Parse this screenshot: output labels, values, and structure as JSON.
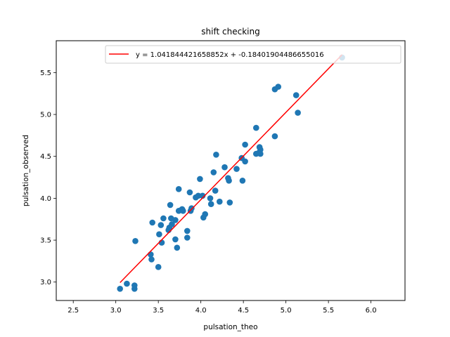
{
  "chart_data": {
    "type": "scatter",
    "title": "shift checking",
    "xlabel": "pulsation_theo",
    "ylabel": "pulsation_observed",
    "xlim": [
      2.3,
      6.4
    ],
    "ylim": [
      2.78,
      5.88
    ],
    "xticks": [
      "2.5",
      "3.0",
      "3.5",
      "4.0",
      "4.5",
      "5.0",
      "5.5",
      "6.0"
    ],
    "yticks": [
      "3.0",
      "3.5",
      "4.0",
      "4.5",
      "5.0",
      "5.5"
    ],
    "grid": false,
    "legend_position": "top-right",
    "points_color": "#1f77b4",
    "line_color": "#ff0000",
    "points": [
      [
        3.05,
        2.92
      ],
      [
        3.13,
        2.98
      ],
      [
        3.22,
        2.92
      ],
      [
        3.22,
        2.96
      ],
      [
        3.23,
        3.49
      ],
      [
        3.41,
        3.33
      ],
      [
        3.42,
        3.27
      ],
      [
        3.43,
        3.71
      ],
      [
        3.5,
        3.18
      ],
      [
        3.51,
        3.57
      ],
      [
        3.53,
        3.68
      ],
      [
        3.54,
        3.47
      ],
      [
        3.56,
        3.76
      ],
      [
        3.62,
        3.62
      ],
      [
        3.63,
        3.65
      ],
      [
        3.64,
        3.92
      ],
      [
        3.65,
        3.76
      ],
      [
        3.66,
        3.69
      ],
      [
        3.7,
        3.51
      ],
      [
        3.72,
        3.41
      ],
      [
        3.7,
        3.74
      ],
      [
        3.74,
        4.11
      ],
      [
        3.74,
        3.85
      ],
      [
        3.77,
        3.86
      ],
      [
        3.78,
        3.87
      ],
      [
        3.79,
        3.85
      ],
      [
        3.84,
        3.61
      ],
      [
        3.84,
        3.53
      ],
      [
        3.87,
        4.07
      ],
      [
        3.88,
        3.85
      ],
      [
        3.89,
        3.88
      ],
      [
        3.94,
        4.01
      ],
      [
        3.97,
        4.03
      ],
      [
        3.99,
        4.23
      ],
      [
        4.02,
        4.03
      ],
      [
        4.03,
        3.77
      ],
      [
        4.05,
        3.81
      ],
      [
        4.11,
        4.0
      ],
      [
        4.12,
        3.93
      ],
      [
        4.15,
        4.31
      ],
      [
        4.17,
        4.09
      ],
      [
        4.18,
        4.52
      ],
      [
        4.22,
        3.96
      ],
      [
        4.28,
        4.37
      ],
      [
        4.32,
        4.24
      ],
      [
        4.33,
        4.21
      ],
      [
        4.34,
        3.95
      ],
      [
        4.42,
        4.35
      ],
      [
        4.48,
        4.48
      ],
      [
        4.49,
        4.21
      ],
      [
        4.52,
        4.64
      ],
      [
        4.52,
        4.44
      ],
      [
        4.65,
        4.84
      ],
      [
        4.65,
        4.53
      ],
      [
        4.68,
        4.54
      ],
      [
        4.69,
        4.61
      ],
      [
        4.7,
        4.58
      ],
      [
        4.7,
        4.53
      ],
      [
        4.87,
        4.74
      ],
      [
        4.87,
        5.3
      ],
      [
        4.91,
        5.33
      ],
      [
        5.12,
        5.23
      ],
      [
        5.14,
        5.02
      ],
      [
        5.66,
        5.68
      ]
    ],
    "fit": {
      "label": "y = 1.041844421658852x + -0.18401904486655016",
      "slope": 1.041844421658852,
      "intercept": -0.18401904486655016,
      "x_range": [
        3.05,
        5.66
      ]
    }
  }
}
